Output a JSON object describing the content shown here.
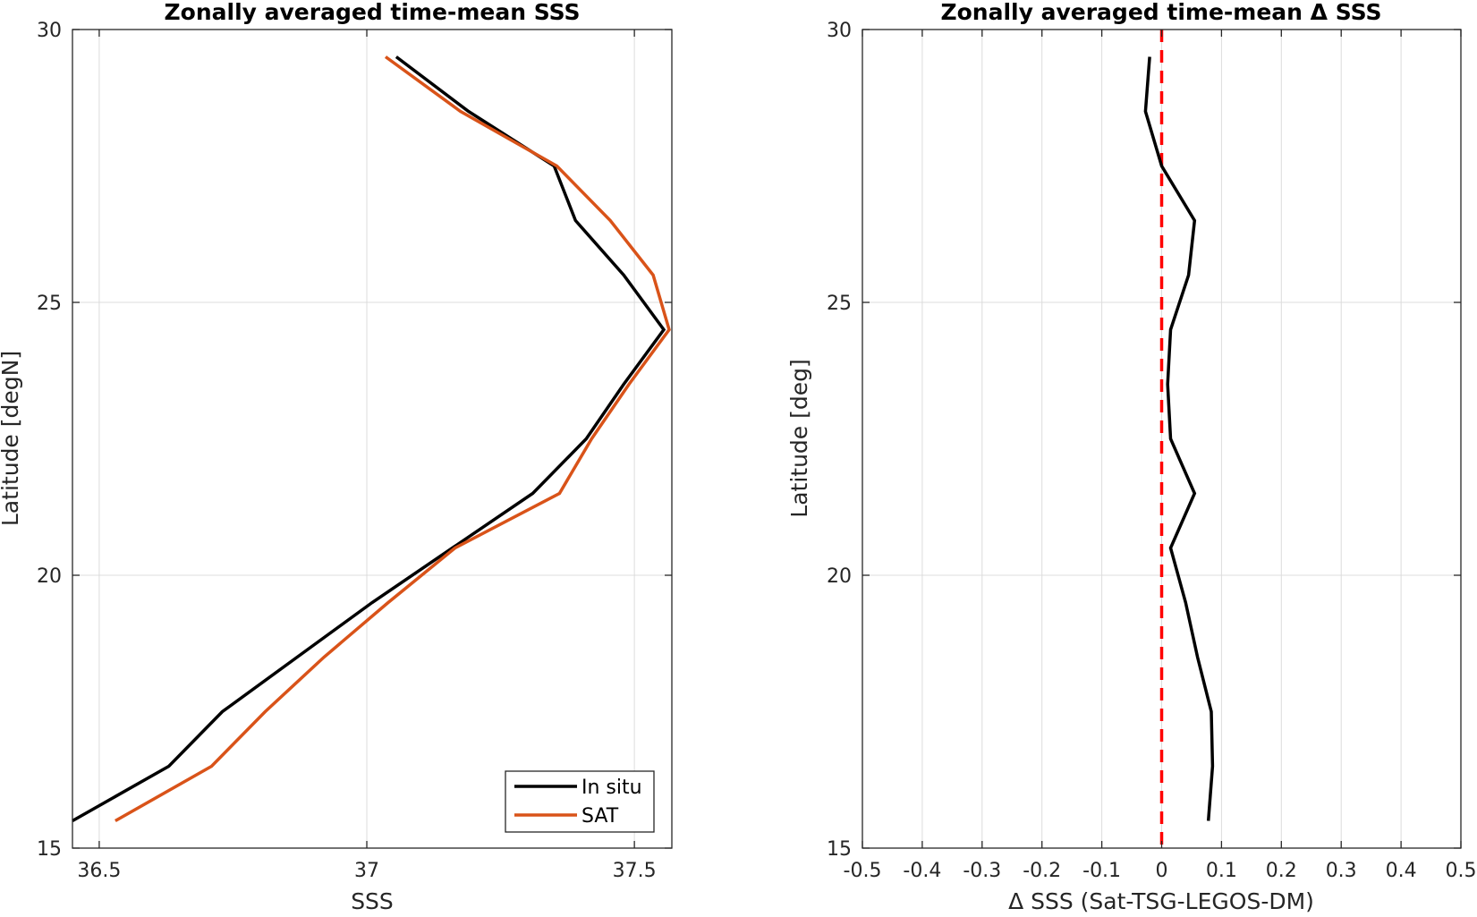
{
  "chart_data": [
    {
      "type": "line",
      "title": "Zonally averaged time-mean SSS",
      "xlabel": "SSS",
      "ylabel": "Latitude [degN]",
      "xlim": [
        36.45,
        37.57
      ],
      "ylim": [
        15,
        30
      ],
      "xticks": [
        36.5,
        37,
        37.5
      ],
      "yticks": [
        15,
        20,
        25,
        30
      ],
      "x_tick_labels": [
        "36.5",
        "37",
        "37.5"
      ],
      "y_tick_labels": [
        "15",
        "20",
        "25",
        "30"
      ],
      "grid": true,
      "legend_position": "bottom-right",
      "series": [
        {
          "name": "In situ",
          "color": "#000000",
          "latitude": [
            15.5,
            16.5,
            17.5,
            18.5,
            19.5,
            20.5,
            21.5,
            22.5,
            23.5,
            24.5,
            25.5,
            26.5,
            27.5,
            28.5,
            29.5
          ],
          "values": [
            36.45,
            36.63,
            36.73,
            36.87,
            37.01,
            37.16,
            37.31,
            37.41,
            37.48,
            37.555,
            37.48,
            37.39,
            37.35,
            37.19,
            37.055
          ]
        },
        {
          "name": "SAT",
          "color": "#D95319",
          "latitude": [
            15.5,
            16.5,
            17.5,
            18.5,
            19.5,
            20.5,
            21.5,
            22.5,
            23.5,
            24.5,
            25.5,
            26.5,
            27.5,
            28.5,
            29.5
          ],
          "values": [
            36.53,
            36.71,
            36.81,
            36.92,
            37.04,
            37.165,
            37.36,
            37.42,
            37.49,
            37.565,
            37.535,
            37.455,
            37.355,
            37.175,
            37.035
          ]
        }
      ]
    },
    {
      "type": "line",
      "title": "Zonally averaged time-mean Δ SSS",
      "xlabel": "Δ SSS (Sat-TSG-LEGOS-DM)",
      "ylabel": "Latitude [deg]",
      "xlim": [
        -0.5,
        0.5
      ],
      "ylim": [
        15,
        30
      ],
      "xticks": [
        -0.5,
        -0.4,
        -0.3,
        -0.2,
        -0.1,
        0,
        0.1,
        0.2,
        0.3,
        0.4,
        0.5
      ],
      "yticks": [
        15,
        20,
        25,
        30
      ],
      "x_tick_labels": [
        "-0.5",
        "-0.4",
        "-0.3",
        "-0.2",
        "-0.1",
        "0",
        "0.1",
        "0.2",
        "0.3",
        "0.4",
        "0.5"
      ],
      "y_tick_labels": [
        "15",
        "20",
        "25",
        "30"
      ],
      "grid": true,
      "series": [
        {
          "color": "#000000",
          "latitude": [
            15.5,
            16.5,
            17.5,
            18.5,
            19.5,
            20.5,
            21.5,
            22.5,
            23.5,
            24.5,
            25.5,
            26.5,
            27.5,
            28.5,
            29.5
          ],
          "values": [
            0.078,
            0.085,
            0.083,
            0.06,
            0.04,
            0.015,
            0.055,
            0.015,
            0.01,
            0.015,
            0.045,
            0.055,
            0.0,
            -0.027,
            -0.02
          ]
        }
      ],
      "reference_line": {
        "x": 0,
        "color": "#FF0000",
        "style": "dashed"
      }
    }
  ]
}
